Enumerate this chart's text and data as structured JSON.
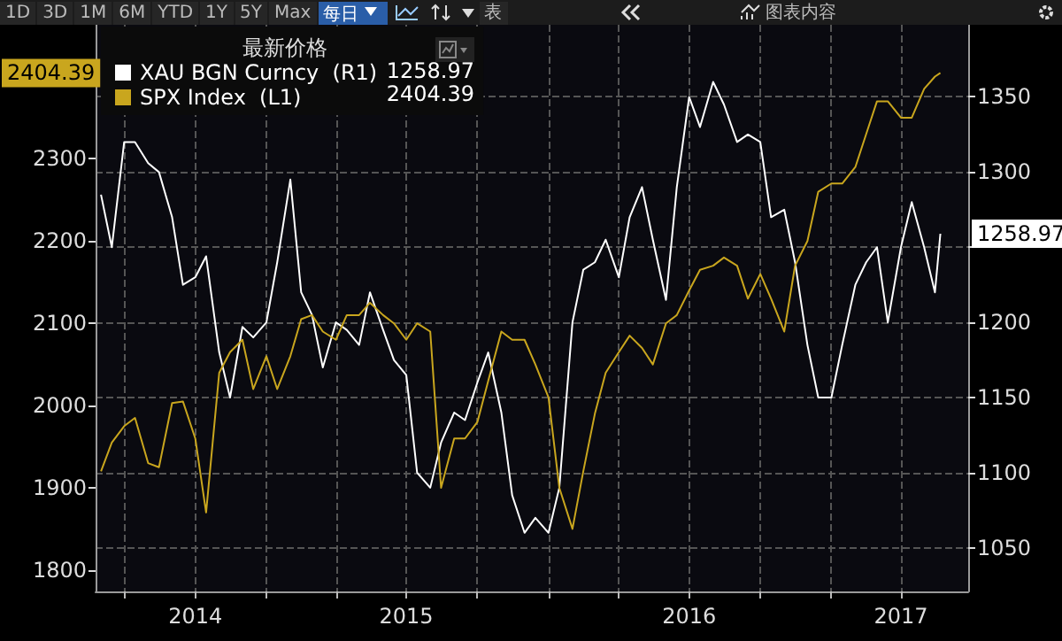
{
  "chart_data": {
    "type": "line",
    "legend_title": "最新价格",
    "legend": "top left",
    "grid": true,
    "marker": "none",
    "annotations": [
      "1D",
      "3D",
      "1M",
      "6M",
      "YTD",
      "1Y",
      "5Y",
      "Max",
      "每日",
      "表",
      "图表内容",
      "1258.97",
      "2404.39",
      "2404.39"
    ],
    "x": [
      "2014-06-01",
      "2014-06-15",
      "2014-07-01",
      "2014-07-15",
      "2014-08-01",
      "2014-08-15",
      "2014-09-01",
      "2014-09-15",
      "2014-10-01",
      "2014-10-15",
      "2014-11-01",
      "2014-11-15",
      "2014-12-01",
      "2014-12-15",
      "2015-01-01",
      "2015-01-15",
      "2015-02-01",
      "2015-02-15",
      "2015-03-01",
      "2015-03-15",
      "2015-04-01",
      "2015-04-15",
      "2015-05-01",
      "2015-05-15",
      "2015-06-01",
      "2015-06-15",
      "2015-07-01",
      "2015-07-15",
      "2015-08-01",
      "2015-08-15",
      "2015-09-01",
      "2015-09-15",
      "2015-10-01",
      "2015-10-15",
      "2015-11-01",
      "2015-11-15",
      "2015-12-01",
      "2015-12-15",
      "2016-01-01",
      "2016-01-15",
      "2016-02-01",
      "2016-02-15",
      "2016-03-01",
      "2016-03-15",
      "2016-04-01",
      "2016-04-15",
      "2016-05-01",
      "2016-05-15",
      "2016-06-01",
      "2016-06-15",
      "2016-07-01",
      "2016-07-15",
      "2016-08-01",
      "2016-08-15",
      "2016-09-01",
      "2016-09-15",
      "2016-10-01",
      "2016-10-15",
      "2016-11-01",
      "2016-11-15",
      "2016-12-01",
      "2016-12-15",
      "2017-01-01",
      "2017-01-15",
      "2017-02-01",
      "2017-02-15",
      "2017-03-01",
      "2017-03-15",
      "2017-04-01",
      "2017-04-15",
      "2017-05-01",
      "2017-05-15",
      "2017-05-22"
    ],
    "series": [
      {
        "name": "XAU BGN Curncy  (R1)",
        "color": "#ffffff",
        "axis": "y2",
        "values": [
          1285,
          1250,
          1320,
          1320,
          1306,
          1300,
          1270,
          1225,
          1230,
          1244,
          1180,
          1150,
          1197,
          1190,
          1200,
          1240,
          1295,
          1220,
          1205,
          1170,
          1200,
          1195,
          1185,
          1220,
          1195,
          1175,
          1165,
          1100,
          1090,
          1120,
          1140,
          1135,
          1160,
          1180,
          1140,
          1085,
          1060,
          1070,
          1060,
          1090,
          1200,
          1235,
          1240,
          1255,
          1230,
          1270,
          1290,
          1255,
          1215,
          1290,
          1350,
          1330,
          1360,
          1345,
          1320,
          1325,
          1320,
          1270,
          1275,
          1240,
          1185,
          1150,
          1150,
          1185,
          1225,
          1240,
          1250,
          1200,
          1250,
          1280,
          1250,
          1220,
          1258.97
        ],
        "value_labels": [
          null,
          null,
          null,
          null,
          null,
          null,
          null,
          null,
          null,
          null,
          null,
          null,
          null,
          null,
          null,
          null,
          null,
          null,
          null,
          null,
          null,
          null,
          null,
          null,
          null,
          null,
          null,
          null,
          null,
          null,
          null,
          null,
          null,
          null,
          null,
          null,
          null,
          null,
          null,
          null,
          null,
          null,
          null,
          null,
          null,
          null,
          null,
          null,
          null,
          null,
          null,
          null,
          null,
          null,
          null,
          null,
          null,
          null,
          null,
          null,
          null,
          null,
          null,
          null,
          null,
          null,
          null,
          null,
          null,
          null,
          null,
          null,
          "1258.97"
        ]
      },
      {
        "name": "SPX Index  (L1)",
        "color": "#c9a61e",
        "values": [
          1920,
          1955,
          1975,
          1985,
          1930,
          1925,
          2003,
          2005,
          1960,
          1870,
          2040,
          2065,
          2080,
          2020,
          2060,
          2020,
          2060,
          2105,
          2110,
          2090,
          2080,
          2110,
          2110,
          2125,
          2110,
          2100,
          2080,
          2100,
          2090,
          1900,
          1960,
          1960,
          1980,
          2030,
          2090,
          2080,
          2080,
          2050,
          2010,
          1900,
          1850,
          1920,
          1990,
          2040,
          2065,
          2085,
          2070,
          2050,
          2100,
          2110,
          2140,
          2165,
          2170,
          2180,
          2170,
          2130,
          2160,
          2130,
          2090,
          2170,
          2200,
          2260,
          2270,
          2270,
          2290,
          2330,
          2370,
          2370,
          2350,
          2350,
          2385,
          2400,
          2404.39
        ],
        "value_labels": [
          null,
          null,
          null,
          null,
          null,
          null,
          null,
          null,
          null,
          null,
          null,
          null,
          null,
          null,
          null,
          null,
          null,
          null,
          null,
          null,
          null,
          null,
          null,
          null,
          null,
          null,
          null,
          null,
          null,
          null,
          null,
          null,
          null,
          null,
          null,
          null,
          null,
          null,
          null,
          null,
          null,
          null,
          null,
          null,
          null,
          null,
          null,
          null,
          null,
          null,
          null,
          null,
          null,
          null,
          null,
          null,
          null,
          null,
          null,
          null,
          null,
          null,
          null,
          null,
          null,
          null,
          null,
          null,
          null,
          null,
          null,
          null,
          null
        ]
      }
    ],
    "xlim": [
      "2014-05-25",
      "2017-06-27"
    ],
    "xticks": [
      {
        "value": "2014-07-01",
        "label": null
      },
      {
        "value": "2014-10-01",
        "label": "2014"
      },
      {
        "value": "2015-01-01",
        "label": null
      },
      {
        "value": "2015-04-01",
        "label": null
      },
      {
        "value": "2015-07-01",
        "label": "2015"
      },
      {
        "value": "2015-10-01",
        "label": null
      },
      {
        "value": "2016-01-01",
        "label": null
      },
      {
        "value": "2016-04-01",
        "label": null
      },
      {
        "value": "2016-07-01",
        "label": "2016"
      },
      {
        "value": "2016-10-01",
        "label": null
      },
      {
        "value": "2017-01-01",
        "label": null
      },
      {
        "value": "2017-04-01",
        "label": "2017"
      }
    ],
    "ylim": [
      1774,
      2463
    ],
    "yticks": [
      1800,
      1900,
      2000,
      2100,
      2200,
      2300
    ],
    "y2lim": [
      1021,
      1398
    ],
    "y2ticks": [
      1050,
      1100,
      1150,
      1200,
      {
        "value": 1250,
        "label": null
      },
      1300,
      1350
    ]
  }
}
